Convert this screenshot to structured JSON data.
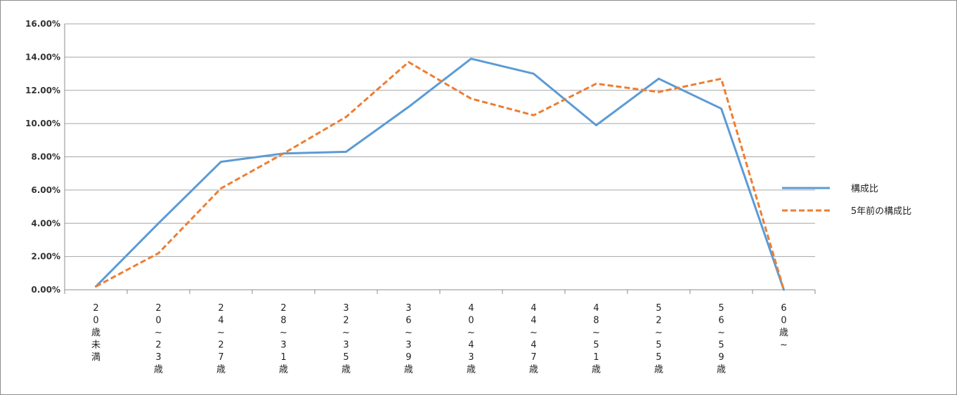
{
  "chart_data": {
    "type": "line",
    "title": "",
    "xlabel": "",
    "ylabel": "",
    "ylim": [
      0,
      0.16
    ],
    "yticks": [
      "0.00%",
      "2.00%",
      "4.00%",
      "6.00%",
      "8.00%",
      "10.00%",
      "12.00%",
      "14.00%",
      "16.00%"
    ],
    "categories": [
      "20歳未満",
      "20~23歳",
      "24~27歳",
      "28~31歳",
      "32~35歳",
      "36~39歳",
      "40~43歳",
      "44~47歳",
      "48~51歳",
      "52~55歳",
      "56~59歳",
      "60歳~"
    ],
    "category_labels": [
      [
        "2",
        "0",
        "歳",
        "未",
        "満"
      ],
      [
        "2",
        "0",
        "~",
        "2",
        "3",
        "歳"
      ],
      [
        "2",
        "4",
        "~",
        "2",
        "7",
        "歳"
      ],
      [
        "2",
        "8",
        "~",
        "3",
        "1",
        "歳"
      ],
      [
        "3",
        "2",
        "~",
        "3",
        "5",
        "歳"
      ],
      [
        "3",
        "6",
        "~",
        "3",
        "9",
        "歳"
      ],
      [
        "4",
        "0",
        "~",
        "4",
        "3",
        "歳"
      ],
      [
        "4",
        "4",
        "~",
        "4",
        "7",
        "歳"
      ],
      [
        "4",
        "8",
        "~",
        "5",
        "1",
        "歳"
      ],
      [
        "5",
        "2",
        "~",
        "5",
        "5",
        "歳"
      ],
      [
        "5",
        "6",
        "~",
        "5",
        "9",
        "歳"
      ],
      [
        "6",
        "0",
        "歳",
        "~"
      ]
    ],
    "series": [
      {
        "name": "構成比",
        "color": "#5b9bd5",
        "style": "solid",
        "values": [
          0.002,
          0.04,
          0.077,
          0.082,
          0.083,
          0.11,
          0.139,
          0.13,
          0.099,
          0.127,
          0.109,
          0.0
        ]
      },
      {
        "name": "5年前の構成比",
        "color": "#ed7d31",
        "style": "dashed",
        "values": [
          0.002,
          0.022,
          0.061,
          0.082,
          0.104,
          0.137,
          0.115,
          0.105,
          0.124,
          0.119,
          0.127,
          0.0
        ]
      }
    ],
    "grid": true,
    "legend_position": "right"
  }
}
